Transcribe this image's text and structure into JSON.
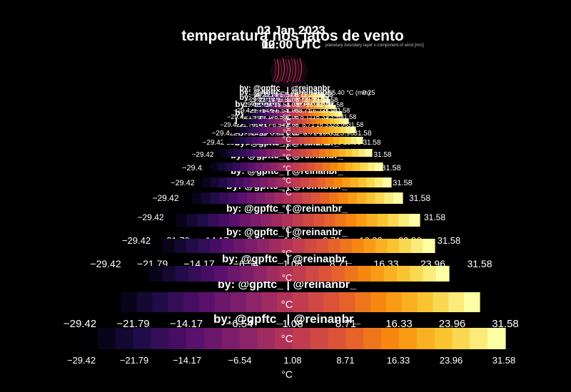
{
  "chart_data": {
    "type": "heatmap",
    "title": "temperatura nos jatos de vento",
    "date": "03 Jan 2023",
    "date_alt": "02 Jan 2023",
    "time": "00:00 UTC",
    "time_alt": "12:00 UTC",
    "variable_note": "planetary boundary layer v-component of wind [m/s]",
    "credit": "by: @gpftc_ | @reinanbr_",
    "colorbar_unit": "°C",
    "colormap": "inferno",
    "colorbar_ticks": [
      "−29.42",
      "−21.79",
      "−14.17",
      "−6.54",
      "1.08",
      "8.71",
      "16.33",
      "23.96",
      "31.58"
    ],
    "colorbar_range": [
      -29.42,
      31.58
    ],
    "colorbar_levels": 24,
    "inner_tick_label": "−55.40 °C (min)",
    "inner_tick_label_2": "0.25"
  }
}
